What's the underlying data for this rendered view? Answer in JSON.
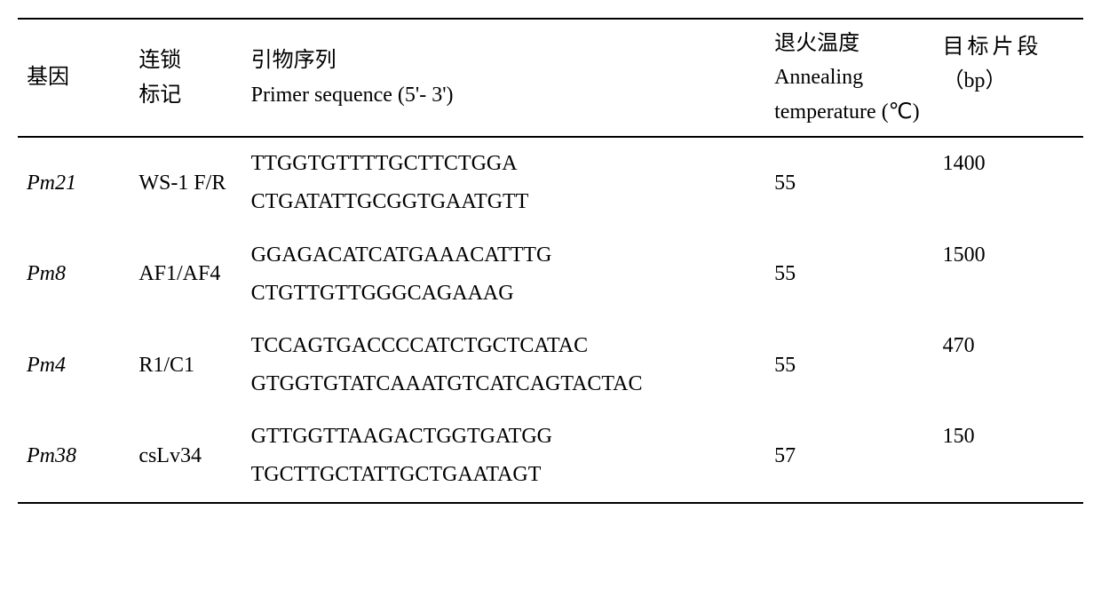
{
  "headers": {
    "gene": "基因",
    "marker_cn": "连锁<br>标记",
    "primer_cn": "引物序列",
    "primer_en": "Primer sequence (5'- 3')",
    "temp_cn": "退火温度",
    "temp_en": "Annealing temperature (℃)",
    "bp_cn": "目标片段",
    "bp_unit": "（bp）"
  },
  "rows": [
    {
      "gene": "Pm21",
      "marker": "WS-1 F/R",
      "primer": "TTGGTGTTTTGCTTCTGGA<br>CTGATATTGCGGTGAATGTT",
      "temp": "55",
      "bp": "1400"
    },
    {
      "gene": "Pm8",
      "marker": "AF1/AF4",
      "primer": "GGAGACATCATGAAACATTTG<br>CTGTTGTTGGGCAGAAAG",
      "temp": "55",
      "bp": "1500"
    },
    {
      "gene": "Pm4",
      "marker": "R1/C1",
      "primer": "TCCAGTGACCCCATCTGCTCATAC<br>GTGGTGTATCAAATGTCATCAGTACTAC",
      "temp": "55",
      "bp": "470"
    },
    {
      "gene": "Pm38",
      "marker": "csLv34",
      "primer": "GTTGGTTAAGACTGGTGATGG<br>TGCTTGCTATTGCTGAATAGT",
      "temp": "57",
      "bp": "150"
    }
  ]
}
